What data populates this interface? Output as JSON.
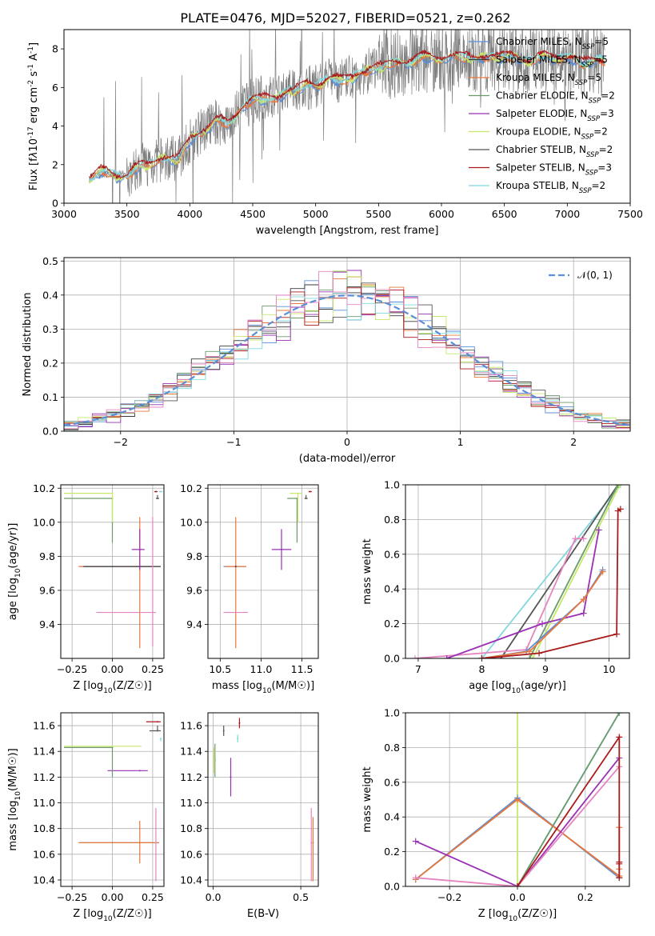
{
  "title": "PLATE=0476, MJD=52027, FIBERID=0521, z=0.262",
  "colors": {
    "Chabrier MILES": "#5b8ed6",
    "Salpeter MILES": "#3a3a3a",
    "Kroupa MILES": "#e8773a",
    "Chabrier ELODIE": "#6a9a6a",
    "Salpeter ELODIE": "#9b30b5",
    "Kroupa ELODIE": "#c8e86a",
    "Chabrier STELIB": "#555555",
    "Salpeter STELIB": "#aa1a1a",
    "Kroupa STELIB": "#7fd8e0",
    "Pink": "#e585c0",
    "Data": "#7f7f7f"
  },
  "chart_data": [
    {
      "id": "spectrum",
      "type": "line",
      "xlabel": "wavelength [Angstrom, rest frame]",
      "ylabel": "Flux [f$_\\lambda$10$^{-17}$ erg cm$^{-2}$ s$^{-1}$ A$^{-1}$]",
      "xlim": [
        3000,
        7500
      ],
      "ylim": [
        0,
        9
      ],
      "xticks": [
        "3000",
        "3500",
        "4000",
        "4500",
        "5000",
        "5500",
        "6000",
        "6500",
        "7000",
        "7500"
      ],
      "yticks": [
        "0",
        "2",
        "4",
        "6",
        "8"
      ],
      "grid": false,
      "legend_position": "upper right",
      "legend": [
        {
          "label": "Chabrier MILES, N",
          "sub": "SSP",
          "tail": "=5"
        },
        {
          "label": "Salpeter MILES, N",
          "sub": "SSP",
          "tail": "=5"
        },
        {
          "label": "Kroupa MILES, N",
          "sub": "SSP",
          "tail": "=5"
        },
        {
          "label": "Chabrier ELODIE, N",
          "sub": "SSP",
          "tail": "=2"
        },
        {
          "label": "Salpeter ELODIE, N",
          "sub": "SSP",
          "tail": "=3"
        },
        {
          "label": "Kroupa ELODIE, N",
          "sub": "SSP",
          "tail": "=2"
        },
        {
          "label": "Chabrier STELIB, N",
          "sub": "SSP",
          "tail": "=2"
        },
        {
          "label": "Salpeter STELIB, N",
          "sub": "SSP",
          "tail": "=3"
        },
        {
          "label": "Kroupa STELIB, N",
          "sub": "SSP",
          "tail": "=2"
        }
      ],
      "continuum": {
        "x": [
          3200,
          3300,
          3400,
          3500,
          3600,
          3700,
          3800,
          3900,
          4000,
          4100,
          4200,
          4300,
          4400,
          4500,
          4600,
          4700,
          4800,
          4900,
          5000,
          5100,
          5200,
          5300,
          5400,
          5500,
          5600,
          5700,
          5800,
          5900,
          6000,
          6100,
          6200,
          6300,
          6400,
          6500,
          6600,
          6700,
          6800,
          6900,
          7000,
          7100,
          7200,
          7300
        ],
        "y": [
          1.3,
          1.6,
          1.5,
          1.4,
          1.9,
          2.1,
          2.3,
          2.3,
          3.2,
          3.8,
          4.2,
          4.1,
          4.9,
          5.3,
          5.5,
          5.4,
          5.9,
          6.0,
          6.1,
          6.5,
          6.3,
          6.6,
          6.8,
          7.1,
          7.2,
          7.3,
          7.5,
          7.5,
          7.6,
          7.5,
          7.6,
          7.5,
          7.6,
          7.6,
          7.5,
          7.4,
          7.5,
          7.6,
          7.5,
          7.3,
          7.4,
          7.3
        ]
      }
    },
    {
      "id": "residuals",
      "type": "histogram",
      "xlabel": "(data-model)/error",
      "ylabel": "Normed distribution",
      "xlim": [
        -2.5,
        2.5
      ],
      "ylim": [
        0,
        0.51
      ],
      "xticks": [
        "−2",
        "−1",
        "0",
        "1",
        "2"
      ],
      "yticks": [
        "0.0",
        "0.1",
        "0.2",
        "0.3",
        "0.4",
        "0.5"
      ],
      "grid": true,
      "legend_label": "𝒩(0, 1)",
      "bins": 40
    },
    {
      "id": "age-vs-Z",
      "type": "scatter",
      "xlabel": "Z [log$_{10}$(Z/Z$_\\odot$)]",
      "ylabel": "age  [log$_{10}$(age/yr)]",
      "xlim": [
        -0.32,
        0.32
      ],
      "ylim": [
        9.2,
        10.22
      ],
      "xticks": [
        "−0.25",
        "0.00",
        "0.25"
      ],
      "yticks": [
        "9.4",
        "9.6",
        "9.8",
        "10.0",
        "10.2"
      ],
      "points": [
        {
          "color": "Chabrier MILES",
          "x": 0.0,
          "xerr": [
            0.2,
            0.25
          ],
          "y": 9.74,
          "yerr": [
            0.0,
            0.0
          ]
        },
        {
          "color": "Kroupa MILES",
          "x": 0.17,
          "xerr": [
            0.38,
            0.12
          ],
          "y": 9.74,
          "yerr": [
            0.48,
            0.29
          ]
        },
        {
          "color": "Salpeter MILES",
          "x": 0.17,
          "xerr": [
            0.35,
            0.13
          ],
          "y": 9.74,
          "yerr": [
            0.0,
            0.0
          ]
        },
        {
          "color": "Salpeter ELODIE",
          "x": 0.17,
          "xerr": [
            0.05,
            0.03
          ],
          "y": 9.84,
          "yerr": [
            0.12,
            0.12
          ]
        },
        {
          "color": "Pink",
          "x": 0.25,
          "xerr": [
            0.35,
            0.02
          ],
          "y": 9.47,
          "yerr": [
            0.2,
            0.56
          ]
        },
        {
          "color": "Chabrier ELODIE",
          "x": 0.0,
          "xerr": [
            0.3,
            0.0
          ],
          "y": 10.14,
          "yerr": [
            0.26,
            0.0
          ]
        },
        {
          "color": "Kroupa ELODIE",
          "x": 0.0,
          "xerr": [
            0.3,
            0.0
          ],
          "y": 10.17,
          "yerr": [
            0.17,
            0.0
          ]
        },
        {
          "color": "Salpeter STELIB",
          "x": 0.27,
          "xerr": [
            0.01,
            0.01
          ],
          "y": 10.18,
          "yerr": [
            0.0,
            0.0
          ]
        },
        {
          "color": "Chabrier STELIB",
          "x": 0.28,
          "xerr": [
            0.01,
            0.01
          ],
          "y": 10.14,
          "yerr": [
            0.0,
            0.02
          ]
        },
        {
          "color": "Kroupa STELIB",
          "x": 0.3,
          "xerr": [
            0.01,
            0.01
          ],
          "y": 10.18,
          "yerr": [
            0.0,
            0.0
          ]
        }
      ]
    },
    {
      "id": "age-vs-mass",
      "type": "scatter",
      "xlabel": "mass [log$_{10}$(M/M$_\\odot$)]",
      "ylabel": "",
      "xlim": [
        10.35,
        11.7
      ],
      "ylim": [
        9.2,
        10.22
      ],
      "xticks": [
        "10.5",
        "11.0",
        "11.5"
      ],
      "yticks": [
        "9.4",
        "9.6",
        "9.8",
        "10.0",
        "10.2"
      ],
      "points": [
        {
          "color": "Chabrier MILES",
          "x": 10.69,
          "xerr": [
            0.15,
            0.12
          ],
          "y": 9.74,
          "yerr": [
            0.0,
            0.0
          ]
        },
        {
          "color": "Kroupa MILES",
          "x": 10.69,
          "xerr": [
            0.13,
            0.13
          ],
          "y": 9.74,
          "yerr": [
            0.48,
            0.29
          ]
        },
        {
          "color": "Salpeter MILES",
          "x": 10.69,
          "xerr": [
            0.0,
            0.0
          ],
          "y": 9.74,
          "yerr": [
            0.0,
            0.0
          ]
        },
        {
          "color": "Pink",
          "x": 10.69,
          "xerr": [
            0.15,
            0.15
          ],
          "y": 9.47,
          "yerr": [
            0.0,
            0.0
          ]
        },
        {
          "color": "Salpeter ELODIE",
          "x": 11.25,
          "xerr": [
            0.12,
            0.12
          ],
          "y": 9.84,
          "yerr": [
            0.12,
            0.12
          ]
        },
        {
          "color": "Chabrier ELODIE",
          "x": 11.44,
          "xerr": [
            0.12,
            0.0
          ],
          "y": 10.14,
          "yerr": [
            0.26,
            0.0
          ]
        },
        {
          "color": "Kroupa ELODIE",
          "x": 11.45,
          "xerr": [
            0.1,
            0.05
          ],
          "y": 10.17,
          "yerr": [
            0.17,
            0.0
          ]
        },
        {
          "color": "Salpeter STELIB",
          "x": 11.6,
          "xerr": [
            0.02,
            0.02
          ],
          "y": 10.18,
          "yerr": [
            0.0,
            0.0
          ]
        },
        {
          "color": "Chabrier STELIB",
          "x": 11.55,
          "xerr": [
            0.02,
            0.02
          ],
          "y": 10.14,
          "yerr": [
            0.0,
            0.02
          ]
        }
      ]
    },
    {
      "id": "mass-weight-vs-age",
      "type": "line",
      "xlabel": "age  [log$_{10}$(age/yr)]",
      "ylabel": "mass weight",
      "xlim": [
        6.8,
        10.32
      ],
      "ylim": [
        0,
        1
      ],
      "xticks": [
        "7",
        "8",
        "9",
        "10"
      ],
      "yticks": [
        "0.0",
        "0.2",
        "0.4",
        "0.6",
        "0.8",
        "1.0"
      ],
      "series": [
        {
          "color": "Kroupa STELIB",
          "x": [
            8.0,
            10.18
          ],
          "y": [
            0.0,
            1.0
          ]
        },
        {
          "color": "Chabrier STELIB",
          "x": [
            8.3,
            10.14
          ],
          "y": [
            0.0,
            1.0
          ]
        },
        {
          "color": "Kroupa ELODIE",
          "x": [
            8.8,
            10.17
          ],
          "y": [
            0.0,
            1.0
          ]
        },
        {
          "color": "Chabrier ELODIE",
          "x": [
            8.75,
            10.14
          ],
          "y": [
            0.0,
            1.0
          ]
        },
        {
          "color": "Pink",
          "x": [
            6.95,
            8.7,
            9.47,
            9.6
          ],
          "y": [
            0.0,
            0.05,
            0.69,
            0.69
          ]
        },
        {
          "color": "Salpeter ELODIE",
          "x": [
            7.45,
            8.95,
            9.6,
            9.84
          ],
          "y": [
            0.0,
            0.2,
            0.26,
            0.74
          ]
        },
        {
          "color": "Chabrier MILES",
          "x": [
            8.0,
            8.7,
            9.6,
            9.9
          ],
          "y": [
            0.0,
            0.04,
            0.34,
            0.51
          ]
        },
        {
          "color": "Kroupa MILES",
          "x": [
            8.0,
            8.75,
            9.6,
            9.9
          ],
          "y": [
            0.0,
            0.04,
            0.34,
            0.5
          ]
        },
        {
          "color": "Salpeter STELIB",
          "x": [
            8.0,
            8.9,
            10.12,
            10.14,
            10.18
          ],
          "y": [
            0.0,
            0.03,
            0.14,
            0.85,
            0.86
          ]
        }
      ]
    },
    {
      "id": "mass-vs-Z",
      "type": "scatter",
      "xlabel": "Z [log$_{10}$(Z/Z$_\\odot$)]",
      "ylabel": "mass [log$_{10}$(M/M$_\\odot$)]",
      "xlim": [
        -0.32,
        0.32
      ],
      "ylim": [
        10.35,
        11.7
      ],
      "xticks": [
        "−0.25",
        "0.00",
        "0.25"
      ],
      "yticks": [
        "10.4",
        "10.6",
        "10.8",
        "11.0",
        "11.2",
        "11.4",
        "11.6"
      ],
      "points": [
        {
          "color": "Chabrier MILES",
          "x": 0.0,
          "xerr": [
            0.2,
            0.25
          ],
          "y": 10.69,
          "yerr": [
            0.0,
            0.0
          ]
        },
        {
          "color": "Kroupa MILES",
          "x": 0.17,
          "xerr": [
            0.38,
            0.12
          ],
          "y": 10.69,
          "yerr": [
            0.16,
            0.17
          ]
        },
        {
          "color": "Pink",
          "x": 0.27,
          "xerr": [
            0.0,
            0.0
          ],
          "y": 10.69,
          "yerr": [
            0.3,
            0.27
          ]
        },
        {
          "color": "Salpeter ELODIE",
          "x": 0.17,
          "xerr": [
            0.2,
            0.05
          ],
          "y": 11.25,
          "yerr": [
            0.0,
            0.0
          ]
        },
        {
          "color": "Chabrier ELODIE",
          "x": 0.0,
          "xerr": [
            0.3,
            0.0
          ],
          "y": 11.43,
          "yerr": [
            0.23,
            0.0
          ]
        },
        {
          "color": "Kroupa ELODIE",
          "x": 0.0,
          "xerr": [
            0.3,
            0.18
          ],
          "y": 11.44,
          "yerr": [
            0.0,
            0.0
          ]
        },
        {
          "color": "Salpeter STELIB",
          "x": 0.28,
          "xerr": [
            0.07,
            0.02
          ],
          "y": 11.63,
          "yerr": [
            0.0,
            0.0
          ]
        },
        {
          "color": "Chabrier STELIB",
          "x": 0.28,
          "xerr": [
            0.05,
            0.02
          ],
          "y": 11.56,
          "yerr": [
            0.0,
            0.04
          ]
        },
        {
          "color": "Kroupa STELIB",
          "x": 0.3,
          "xerr": [
            0.0,
            0.0
          ],
          "y": 11.5,
          "yerr": [
            0.02,
            0.0
          ]
        }
      ]
    },
    {
      "id": "mass-vs-ebv",
      "type": "scatter",
      "xlabel": "E(B-V)",
      "ylabel": "",
      "xlim": [
        -0.03,
        0.6
      ],
      "ylim": [
        10.35,
        11.7
      ],
      "xticks": [
        "0.0",
        "0.5"
      ],
      "yticks": [
        "10.4",
        "10.6",
        "10.8",
        "11.0",
        "11.2",
        "11.4",
        "11.6"
      ],
      "points": [
        {
          "color": "Chabrier ELODIE",
          "x": 0.01,
          "xerr": [
            0.0,
            0.0
          ],
          "y": 11.33,
          "yerr": [
            0.13,
            0.13
          ]
        },
        {
          "color": "Kroupa ELODIE",
          "x": 0.005,
          "xerr": [
            0.0,
            0.0
          ],
          "y": 11.33,
          "yerr": [
            0.1,
            0.1
          ]
        },
        {
          "color": "Salpeter ELODIE",
          "x": 0.1,
          "xerr": [
            0.0,
            0.0
          ],
          "y": 11.2,
          "yerr": [
            0.15,
            0.15
          ]
        },
        {
          "color": "Chabrier STELIB",
          "x": 0.06,
          "xerr": [
            0.0,
            0.0
          ],
          "y": 11.56,
          "yerr": [
            0.04,
            0.04
          ]
        },
        {
          "color": "Salpeter STELIB",
          "x": 0.15,
          "xerr": [
            0.0,
            0.0
          ],
          "y": 11.62,
          "yerr": [
            0.04,
            0.04
          ]
        },
        {
          "color": "Kroupa STELIB",
          "x": 0.14,
          "xerr": [
            0.0,
            0.0
          ],
          "y": 11.5,
          "yerr": [
            0.03,
            0.03
          ]
        },
        {
          "color": "Kroupa MILES",
          "x": 0.57,
          "xerr": [
            0.0,
            0.0
          ],
          "y": 10.69,
          "yerr": [
            0.3,
            0.2
          ]
        },
        {
          "color": "Pink",
          "x": 0.56,
          "xerr": [
            0.0,
            0.0
          ],
          "y": 10.69,
          "yerr": [
            0.3,
            0.27
          ]
        }
      ]
    },
    {
      "id": "mass-weight-vs-Z",
      "type": "line",
      "xlabel": "Z [log$_{10}$(Z/Z$_\\odot$)]",
      "ylabel": "mass weight",
      "xlim": [
        -0.33,
        0.33
      ],
      "ylim": [
        0,
        1
      ],
      "xticks": [
        "−0.2",
        "0.0",
        "0.2"
      ],
      "yticks": [
        "0.0",
        "0.2",
        "0.4",
        "0.6",
        "0.8",
        "1.0"
      ],
      "series": [
        {
          "color": "Kroupa STELIB",
          "x": [
            0.0,
            0.3
          ],
          "y": [
            0.0,
            1.0
          ]
        },
        {
          "color": "Chabrier ELODIE",
          "x": [
            0.0,
            0.3
          ],
          "y": [
            0.0,
            1.0
          ]
        },
        {
          "color": "Kroupa ELODIE",
          "x": [
            0.0,
            0.0
          ],
          "y": [
            0.0,
            1.0
          ]
        },
        {
          "color": "Chabrier MILES",
          "x": [
            -0.3,
            0.0,
            0.3
          ],
          "y": [
            0.04,
            0.51,
            0.05
          ]
        },
        {
          "color": "Kroupa MILES",
          "x": [
            -0.3,
            0.0,
            0.3,
            0.3,
            0.3
          ],
          "y": [
            0.04,
            0.5,
            0.06,
            0.34,
            0.1
          ]
        },
        {
          "color": "Salpeter ELODIE",
          "x": [
            -0.3,
            0.0,
            0.3
          ],
          "y": [
            0.26,
            0.0,
            0.74
          ]
        },
        {
          "color": "Pink",
          "x": [
            -0.3,
            0.0,
            0.3
          ],
          "y": [
            0.05,
            0.0,
            0.69
          ]
        },
        {
          "color": "Salpeter STELIB",
          "x": [
            0.0,
            0.3,
            0.3,
            0.3,
            0.3
          ],
          "y": [
            0.0,
            0.86,
            0.14,
            0.13,
            0.05
          ]
        }
      ]
    }
  ]
}
